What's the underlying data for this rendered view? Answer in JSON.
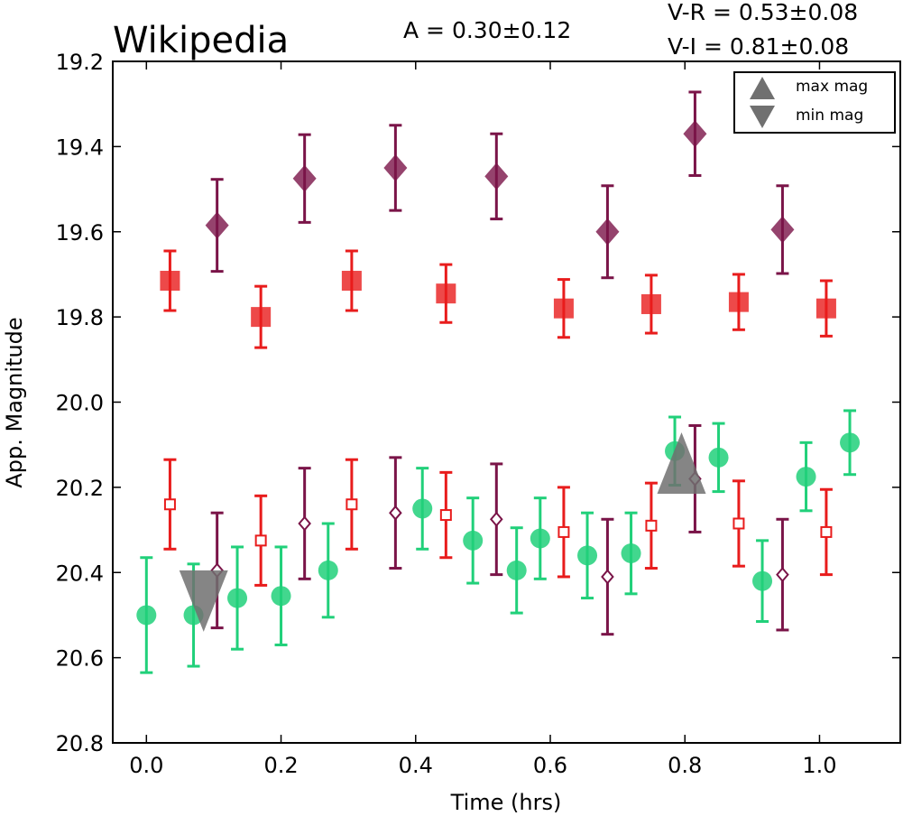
{
  "chart_data": {
    "type": "scatter",
    "title": "Wikipedia",
    "xlabel": "Time (hrs)",
    "ylabel": "App. Magnitude",
    "xlim": [
      -0.05,
      1.12
    ],
    "ylim": [
      20.8,
      19.2
    ],
    "y_inverted": true,
    "xticks": [
      "0.0",
      "0.2",
      "0.4",
      "0.6",
      "0.8",
      "1.0"
    ],
    "yticks": [
      "19.2",
      "19.4",
      "19.6",
      "19.8",
      "20.0",
      "20.2",
      "20.4",
      "20.6",
      "20.8"
    ],
    "grid": false,
    "annotations": {
      "amplitude": "A  = 0.30±0.12",
      "color_vr": "V-R = 0.53±0.08",
      "color_vi": "V-I  = 0.81±0.08"
    },
    "legend": {
      "placement": "top-right",
      "entries": [
        {
          "marker": "triangle-up",
          "label": "max mag"
        },
        {
          "marker": "triangle-down",
          "label": "min mag"
        }
      ]
    },
    "series": [
      {
        "color": "#21d07a",
        "marker": "circle",
        "points": [
          {
            "x": 0.0,
            "y": 20.5,
            "err": 0.135
          },
          {
            "x": 0.07,
            "y": 20.5,
            "err": 0.12
          },
          {
            "x": 0.135,
            "y": 20.46,
            "err": 0.12
          },
          {
            "x": 0.2,
            "y": 20.455,
            "err": 0.115
          },
          {
            "x": 0.27,
            "y": 20.395,
            "err": 0.11
          },
          {
            "x": 0.41,
            "y": 20.25,
            "err": 0.095
          },
          {
            "x": 0.485,
            "y": 20.325,
            "err": 0.1
          },
          {
            "x": 0.55,
            "y": 20.395,
            "err": 0.1
          },
          {
            "x": 0.585,
            "y": 20.32,
            "err": 0.095
          },
          {
            "x": 0.655,
            "y": 20.36,
            "err": 0.1
          },
          {
            "x": 0.72,
            "y": 20.355,
            "err": 0.095
          },
          {
            "x": 0.785,
            "y": 20.115,
            "err": 0.08
          },
          {
            "x": 0.85,
            "y": 20.13,
            "err": 0.08
          },
          {
            "x": 0.915,
            "y": 20.42,
            "err": 0.095
          },
          {
            "x": 0.98,
            "y": 20.175,
            "err": 0.08
          },
          {
            "x": 1.045,
            "y": 20.095,
            "err": 0.075
          }
        ]
      },
      {
        "color": "#e81c1c",
        "marker": "square-open",
        "points": [
          {
            "x": 0.035,
            "y": 20.24,
            "err": 0.105
          },
          {
            "x": 0.17,
            "y": 20.325,
            "err": 0.105
          },
          {
            "x": 0.305,
            "y": 20.24,
            "err": 0.105
          },
          {
            "x": 0.445,
            "y": 20.265,
            "err": 0.1
          },
          {
            "x": 0.62,
            "y": 20.305,
            "err": 0.105
          },
          {
            "x": 0.75,
            "y": 20.29,
            "err": 0.1
          },
          {
            "x": 0.88,
            "y": 20.285,
            "err": 0.1
          },
          {
            "x": 1.01,
            "y": 20.305,
            "err": 0.1
          }
        ]
      },
      {
        "color": "#7a1448",
        "marker": "diamond-open",
        "points": [
          {
            "x": 0.105,
            "y": 20.395,
            "err": 0.135
          },
          {
            "x": 0.235,
            "y": 20.285,
            "err": 0.13
          },
          {
            "x": 0.37,
            "y": 20.26,
            "err": 0.13
          },
          {
            "x": 0.52,
            "y": 20.275,
            "err": 0.13
          },
          {
            "x": 0.685,
            "y": 20.41,
            "err": 0.135
          },
          {
            "x": 0.815,
            "y": 20.18,
            "err": 0.125
          },
          {
            "x": 0.945,
            "y": 20.405,
            "err": 0.13
          }
        ]
      },
      {
        "color": "#e81c1c",
        "marker": "square",
        "points": [
          {
            "x": 0.035,
            "y": 19.715,
            "err": 0.07
          },
          {
            "x": 0.17,
            "y": 19.8,
            "err": 0.072
          },
          {
            "x": 0.305,
            "y": 19.715,
            "err": 0.07
          },
          {
            "x": 0.445,
            "y": 19.745,
            "err": 0.068
          },
          {
            "x": 0.62,
            "y": 19.78,
            "err": 0.068
          },
          {
            "x": 0.75,
            "y": 19.77,
            "err": 0.068
          },
          {
            "x": 0.88,
            "y": 19.765,
            "err": 0.065
          },
          {
            "x": 1.01,
            "y": 19.78,
            "err": 0.065
          }
        ]
      },
      {
        "color": "#7a1448",
        "marker": "diamond",
        "points": [
          {
            "x": 0.105,
            "y": 19.585,
            "err": 0.108
          },
          {
            "x": 0.235,
            "y": 19.475,
            "err": 0.103
          },
          {
            "x": 0.37,
            "y": 19.45,
            "err": 0.1
          },
          {
            "x": 0.52,
            "y": 19.47,
            "err": 0.1
          },
          {
            "x": 0.685,
            "y": 19.6,
            "err": 0.108
          },
          {
            "x": 0.815,
            "y": 19.37,
            "err": 0.098
          },
          {
            "x": 0.945,
            "y": 19.595,
            "err": 0.103
          }
        ]
      }
    ],
    "markers": [
      {
        "type": "max",
        "marker": "triangle-up",
        "color": "#707070",
        "x": 0.795,
        "y": 20.16
      },
      {
        "type": "min",
        "marker": "triangle-down",
        "color": "#707070",
        "x": 0.085,
        "y": 20.45
      }
    ]
  }
}
